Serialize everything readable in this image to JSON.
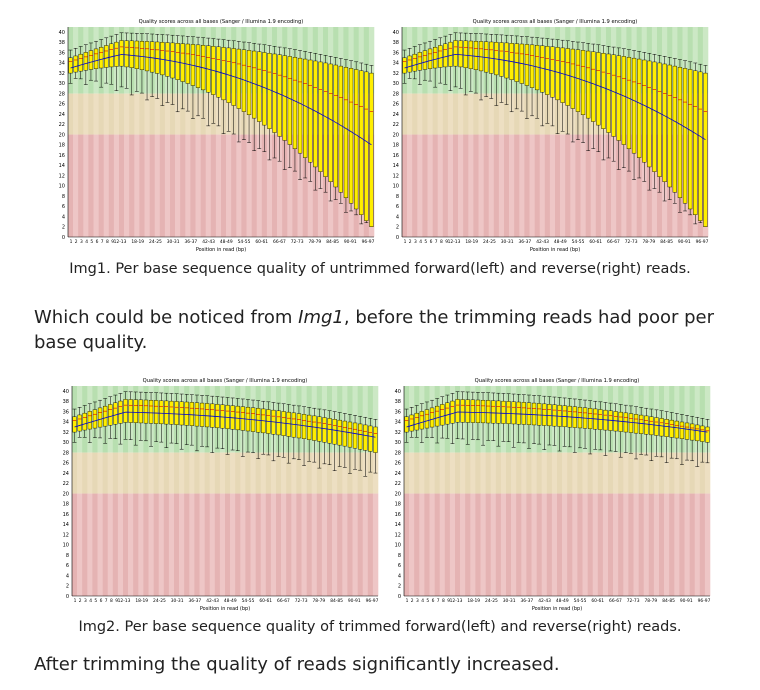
{
  "document": {
    "caption1": "Img1. Per base sequence quality of untrimmed forward(left) and reverse(right) reads.",
    "para1_before": "Which could be noticed from ",
    "para1_italic": "Img1",
    "para1_after": ", before the trimming reads had poor per base quality.",
    "caption2": "Img2. Per base sequence quality of trimmed forward(left) and reverse(right) reads.",
    "para2": "After trimming the quality of reads significantly increased."
  },
  "zone_colors": {
    "good": "#b8dfb0",
    "good_alt": "#cce8c5",
    "mid": "#e6d8b6",
    "mid_alt": "#eddfc2",
    "bad": "#e5b3b3",
    "bad_alt": "#eec6c6",
    "box": "#ffee00",
    "median": "#d60000",
    "mean": "#0000cc",
    "whisker": "#000000"
  },
  "chart_data": [
    {
      "type": "box",
      "title": "Quality scores across all bases (Sanger / Illumina 1.9 encoding)",
      "xlabel": "Position in read (bp)",
      "x_tick_labels": [
        "1",
        "2",
        "3",
        "4",
        "5",
        "6",
        "7",
        "8",
        "9",
        "12-13",
        "18-19",
        "24-25",
        "30-31",
        "36-37",
        "42-43",
        "48-49",
        "54-55",
        "60-61",
        "66-67",
        "72-73",
        "78-79",
        "84-85",
        "90-91",
        "96-97"
      ],
      "y_tick_labels": [
        "0",
        "2",
        "4",
        "6",
        "8",
        "10",
        "12",
        "14",
        "16",
        "18",
        "20",
        "22",
        "24",
        "26",
        "28",
        "30",
        "32",
        "34",
        "36",
        "38",
        "40"
      ],
      "ylim": [
        0,
        41
      ],
      "zones": {
        "good": [
          28,
          41
        ],
        "mid": [
          20,
          28
        ],
        "bad": [
          0,
          20
        ]
      },
      "positions": 60,
      "quality_profile": "untrimmed-forward",
      "q1_start": 32,
      "q1_end": 2,
      "q3_start": 35,
      "q3_end": 32,
      "mean_start": 33,
      "mean_end": 18,
      "low_start": 31,
      "low_end": 2
    },
    {
      "type": "box",
      "title": "Quality scores across all bases (Sanger / Illumina 1.9 encoding)",
      "xlabel": "Position in read (bp)",
      "x_tick_labels": [
        "1",
        "2",
        "3",
        "4",
        "5",
        "6",
        "7",
        "8",
        "9",
        "12-13",
        "18-19",
        "24-25",
        "30-31",
        "36-37",
        "42-43",
        "48-49",
        "54-55",
        "60-61",
        "66-67",
        "72-73",
        "78-79",
        "84-85",
        "90-91",
        "96-97"
      ],
      "y_tick_labels": [
        "0",
        "2",
        "4",
        "6",
        "8",
        "10",
        "12",
        "14",
        "16",
        "18",
        "20",
        "22",
        "24",
        "26",
        "28",
        "30",
        "32",
        "34",
        "36",
        "38",
        "40"
      ],
      "ylim": [
        0,
        41
      ],
      "zones": {
        "good": [
          28,
          41
        ],
        "mid": [
          20,
          28
        ],
        "bad": [
          0,
          20
        ]
      },
      "positions": 60,
      "quality_profile": "untrimmed-reverse",
      "q1_start": 32,
      "q1_end": 2,
      "q3_start": 35,
      "q3_end": 32,
      "mean_start": 33,
      "mean_end": 19,
      "low_start": 31,
      "low_end": 2
    },
    {
      "type": "box",
      "title": "Quality scores across all bases (Sanger / Illumina 1.9 encoding)",
      "xlabel": "Position in read (bp)",
      "x_tick_labels": [
        "1",
        "2",
        "3",
        "4",
        "5",
        "6",
        "7",
        "8",
        "9",
        "12-13",
        "18-19",
        "24-25",
        "30-31",
        "36-37",
        "42-43",
        "48-49",
        "54-55",
        "60-61",
        "66-67",
        "72-73",
        "78-79",
        "84-85",
        "90-91",
        "96-97"
      ],
      "y_tick_labels": [
        "0",
        "2",
        "4",
        "6",
        "8",
        "10",
        "12",
        "14",
        "16",
        "18",
        "20",
        "22",
        "24",
        "26",
        "28",
        "30",
        "32",
        "34",
        "36",
        "38",
        "40"
      ],
      "ylim": [
        0,
        41
      ],
      "zones": {
        "good": [
          28,
          41
        ],
        "mid": [
          20,
          28
        ],
        "bad": [
          0,
          20
        ]
      },
      "positions": 60,
      "quality_profile": "trimmed-forward",
      "q1_start": 32,
      "q1_end": 28,
      "q3_start": 35,
      "q3_end": 33,
      "mean_start": 33,
      "mean_end": 31,
      "low_start": 31,
      "low_end": 24
    },
    {
      "type": "box",
      "title": "Quality scores across all bases (Sanger / Illumina 1.9 encoding)",
      "xlabel": "Position in read (bp)",
      "x_tick_labels": [
        "1",
        "2",
        "3",
        "4",
        "5",
        "6",
        "7",
        "8",
        "9",
        "12-13",
        "18-19",
        "24-25",
        "30-31",
        "36-37",
        "42-43",
        "48-49",
        "54-55",
        "60-61",
        "66-67",
        "72-73",
        "78-79",
        "84-85",
        "90-91",
        "96-97"
      ],
      "y_tick_labels": [
        "0",
        "2",
        "4",
        "6",
        "8",
        "10",
        "12",
        "14",
        "16",
        "18",
        "20",
        "22",
        "24",
        "26",
        "28",
        "30",
        "32",
        "34",
        "36",
        "38",
        "40"
      ],
      "ylim": [
        0,
        41
      ],
      "zones": {
        "good": [
          28,
          41
        ],
        "mid": [
          20,
          28
        ],
        "bad": [
          0,
          20
        ]
      },
      "positions": 60,
      "quality_profile": "trimmed-reverse",
      "q1_start": 32,
      "q1_end": 30,
      "q3_start": 35,
      "q3_end": 33,
      "mean_start": 33,
      "mean_end": 32,
      "low_start": 31,
      "low_end": 26
    }
  ]
}
